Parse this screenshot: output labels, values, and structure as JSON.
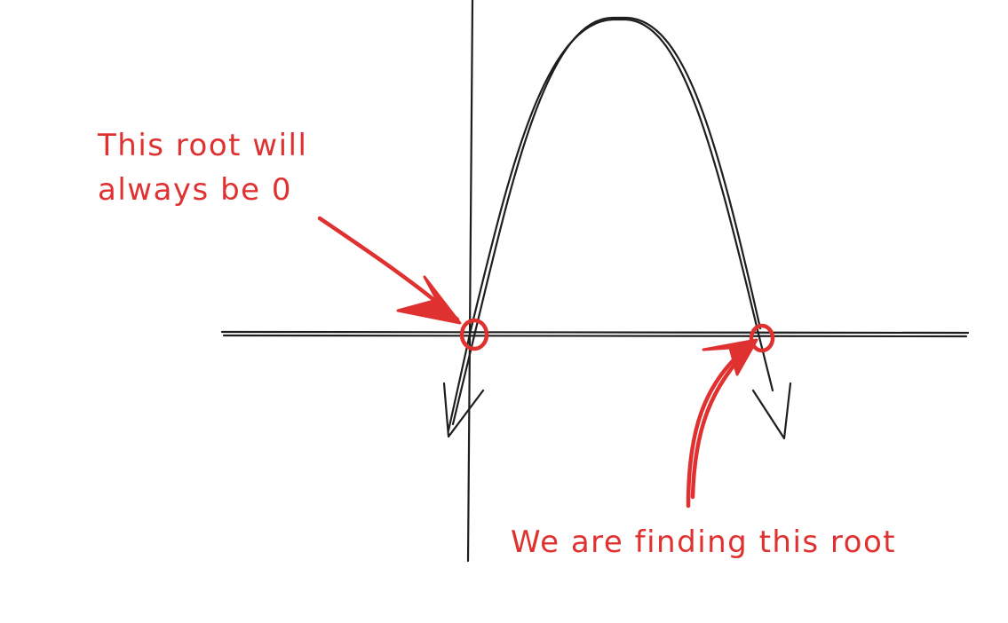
{
  "annotations": {
    "root_zero_line1": "This root will",
    "root_zero_line2": "always be 0",
    "finding_root": "We are finding this root"
  },
  "colors": {
    "ink": "#1e1e1e",
    "accent": "#e03131",
    "background": "#ffffff"
  }
}
